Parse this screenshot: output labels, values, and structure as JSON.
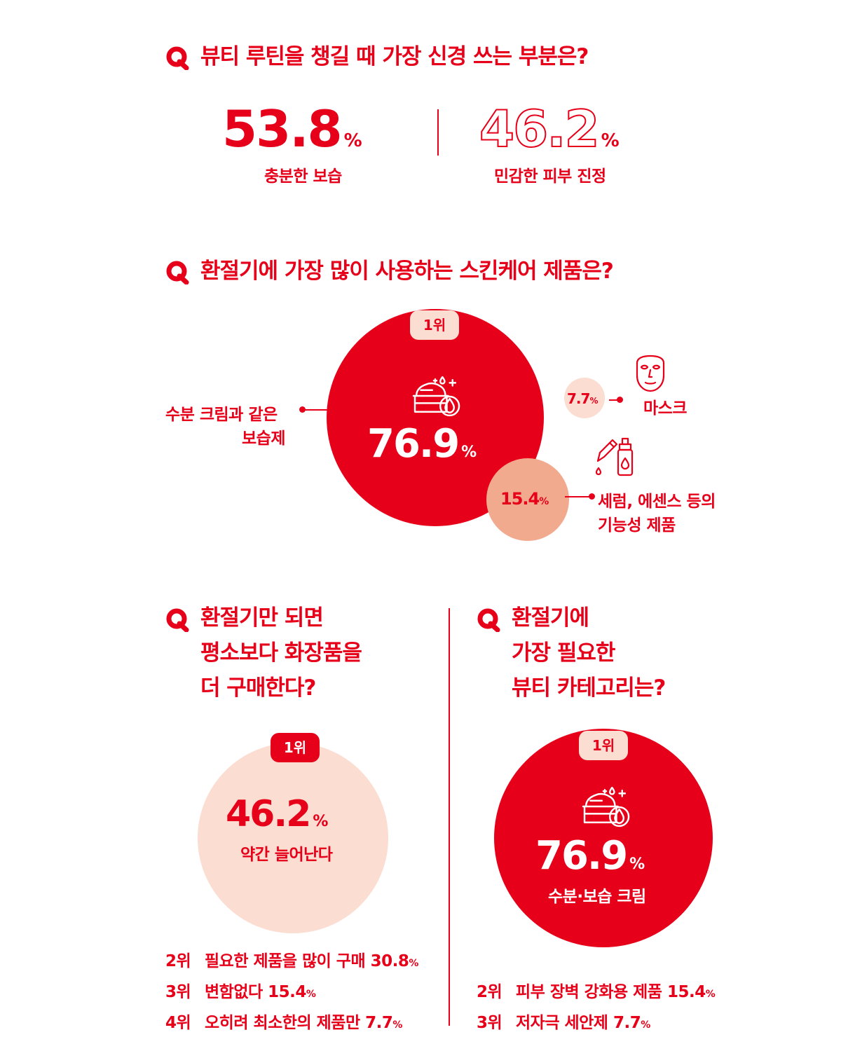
{
  "colors": {
    "primary": "#e60019",
    "light": "#fbddd2",
    "medium": "#f2aa8e",
    "white": "#ffffff"
  },
  "q1": {
    "title": "뷰티 루틴을 챙길 때 가장 신경 쓰는 부분은?",
    "left_value": "53.8",
    "left_label": "충분한 보습",
    "right_value": "46.2",
    "right_label": "민감한 피부 진정",
    "pct": "%"
  },
  "q2": {
    "title": "환절기에 가장 많이 사용하는 스킨케어 제품은?",
    "badge": "1위",
    "main_value": "76.9",
    "main_label_1": "수분 크림과 같은",
    "main_label_2": "보습제",
    "mid_value": "15.4",
    "mid_label_1": "세럼, 에센스 등의",
    "mid_label_2": "기능성 제품",
    "small_value": "7.7",
    "small_label": "마스크",
    "pct": "%",
    "icons": [
      "cream-jar-icon",
      "face-mask-icon",
      "dropper-bottle-icon"
    ]
  },
  "q3": {
    "title_1": "환절기만 되면",
    "title_2": "평소보다 화장품을",
    "title_3": "더 구매한다?",
    "badge": "1위",
    "value": "46.2",
    "pct": "%",
    "label": "약간 늘어난다",
    "ranks": [
      {
        "rank": "2위",
        "text": "필요한 제품을 많이 구매 30.8",
        "pct": "%"
      },
      {
        "rank": "3위",
        "text": "변함없다 15.4",
        "pct": "%"
      },
      {
        "rank": "4위",
        "text": "오히려 최소한의 제품만  7.7",
        "pct": "%"
      }
    ]
  },
  "q4": {
    "title_1": "환절기에",
    "title_2": "가장 필요한",
    "title_3": "뷰티 카테고리는?",
    "badge": "1위",
    "value": "76.9",
    "pct": "%",
    "label": "수분·보습 크림",
    "ranks": [
      {
        "rank": "2위",
        "text": "피부 장벽 강화용 제품 15.4",
        "pct": "%"
      },
      {
        "rank": "3위",
        "text": "저자극 세안제 7.7",
        "pct": "%"
      }
    ]
  },
  "chart_data": [
    {
      "type": "table",
      "title": "뷰티 루틴을 챙길 때 가장 신경 쓰는 부분은?",
      "categories": [
        "충분한 보습",
        "민감한 피부 진정"
      ],
      "values": [
        53.8,
        46.2
      ]
    },
    {
      "type": "scatter",
      "title": "환절기에 가장 많이 사용하는 스킨케어 제품은?",
      "categories": [
        "수분 크림과 같은 보습제",
        "세럼, 에센스 등의 기능성 제품",
        "마스크"
      ],
      "values": [
        76.9,
        15.4,
        7.7
      ]
    },
    {
      "type": "table",
      "title": "환절기만 되면 평소보다 화장품을 더 구매한다?",
      "categories": [
        "약간 늘어난다",
        "필요한 제품을 많이 구매",
        "변함없다",
        "오히려 최소한의 제품만"
      ],
      "values": [
        46.2,
        30.8,
        15.4,
        7.7
      ]
    },
    {
      "type": "table",
      "title": "환절기에 가장 필요한 뷰티 카테고리는?",
      "categories": [
        "수분·보습 크림",
        "피부 장벽 강화용 제품",
        "저자극 세안제"
      ],
      "values": [
        76.9,
        15.4,
        7.7
      ]
    }
  ]
}
